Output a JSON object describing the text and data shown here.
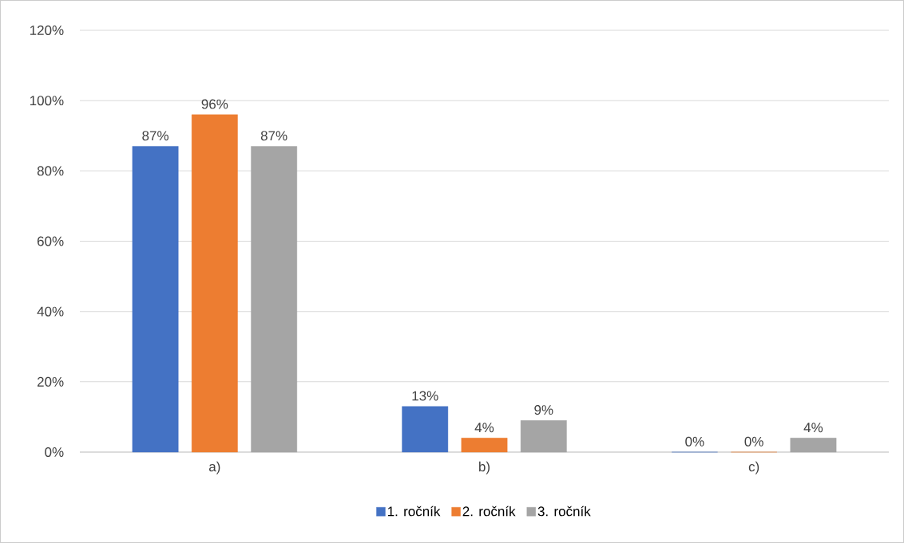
{
  "chart_data": {
    "type": "bar",
    "categories": [
      "a)",
      "b)",
      "c)"
    ],
    "series": [
      {
        "name": "1. ročník",
        "color": "#4472c4",
        "values": [
          87,
          13,
          0
        ],
        "value_labels": [
          "87%",
          "13%",
          "0%"
        ]
      },
      {
        "name": "2. ročník",
        "color": "#ed7d31",
        "values": [
          96,
          4,
          0
        ],
        "value_labels": [
          "96%",
          "4%",
          "0%"
        ]
      },
      {
        "name": "3. ročník",
        "color": "#a5a5a5",
        "values": [
          87,
          9,
          4
        ],
        "value_labels": [
          "87%",
          "9%",
          "4%"
        ]
      }
    ],
    "ylim": [
      0,
      120
    ],
    "yticks": [
      {
        "value": 0,
        "label": "0%"
      },
      {
        "value": 20,
        "label": "20%"
      },
      {
        "value": 40,
        "label": "40%"
      },
      {
        "value": 60,
        "label": "60%"
      },
      {
        "value": 80,
        "label": "80%"
      },
      {
        "value": 100,
        "label": "100%"
      },
      {
        "value": 120,
        "label": "120%"
      }
    ],
    "grid": "y",
    "legend": "bottom"
  }
}
